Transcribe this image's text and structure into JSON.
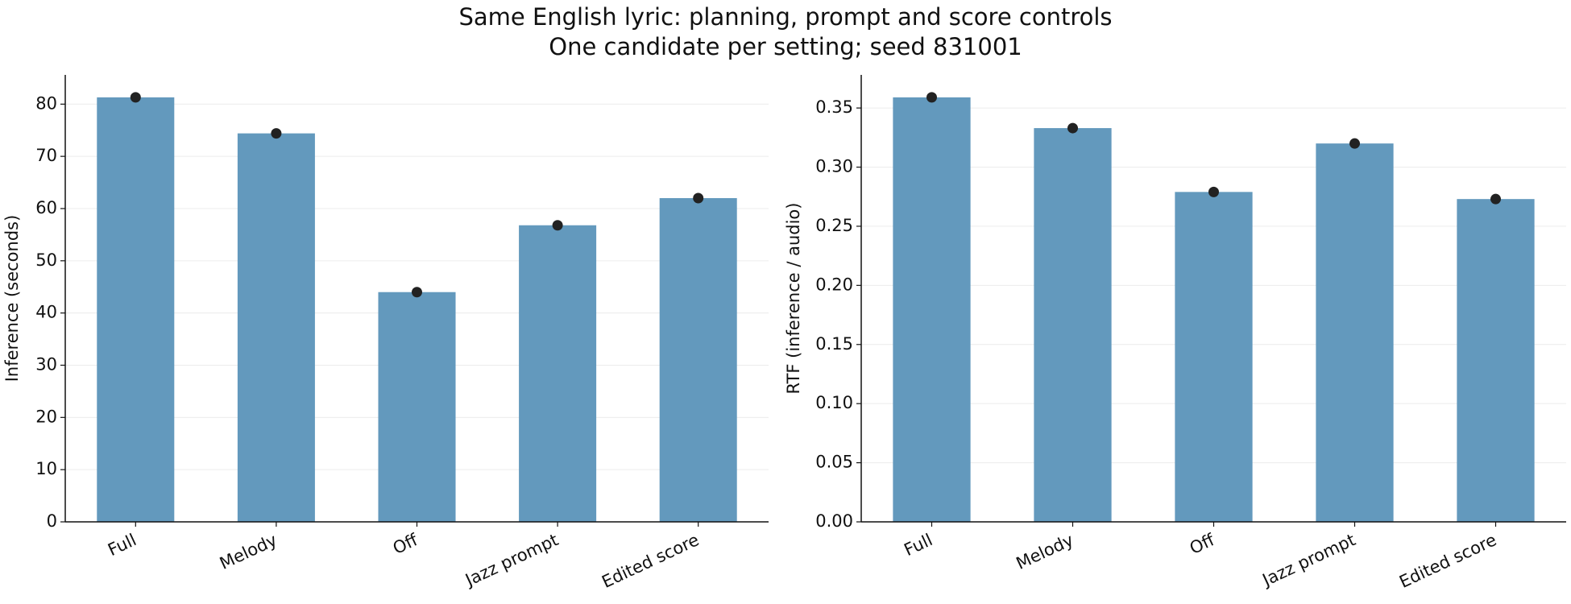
{
  "suptitle": [
    "Same English lyric: planning, prompt and score controls",
    "One candidate per setting; seed 831001"
  ],
  "chart_data": [
    {
      "type": "bar",
      "ylabel": "Inference (seconds)",
      "categories": [
        "Full",
        "Melody",
        "Off",
        "Jazz prompt",
        "Edited score"
      ],
      "values": [
        81.3,
        74.4,
        44.0,
        56.8,
        62.0
      ],
      "color": "#6399bd",
      "marker_color": "#222222",
      "ylim": [
        0,
        85.6
      ],
      "yticks": [
        0,
        10,
        20,
        30,
        40,
        50,
        60,
        70,
        80
      ],
      "grid": true
    },
    {
      "type": "bar",
      "ylabel": "RTF (inference / audio)",
      "categories": [
        "Full",
        "Melody",
        "Off",
        "Jazz prompt",
        "Edited score"
      ],
      "values": [
        0.359,
        0.333,
        0.279,
        0.32,
        0.273
      ],
      "color": "#6399bd",
      "marker_color": "#222222",
      "ylim": [
        0,
        0.378
      ],
      "yticks": [
        {
          "value": 0,
          "label": "0.00"
        },
        0.05,
        {
          "value": 0.1,
          "label": "0.10"
        },
        0.15,
        {
          "value": 0.2,
          "label": "0.20"
        },
        0.25,
        {
          "value": 0.3,
          "label": "0.30"
        },
        0.35
      ],
      "grid": true
    }
  ]
}
